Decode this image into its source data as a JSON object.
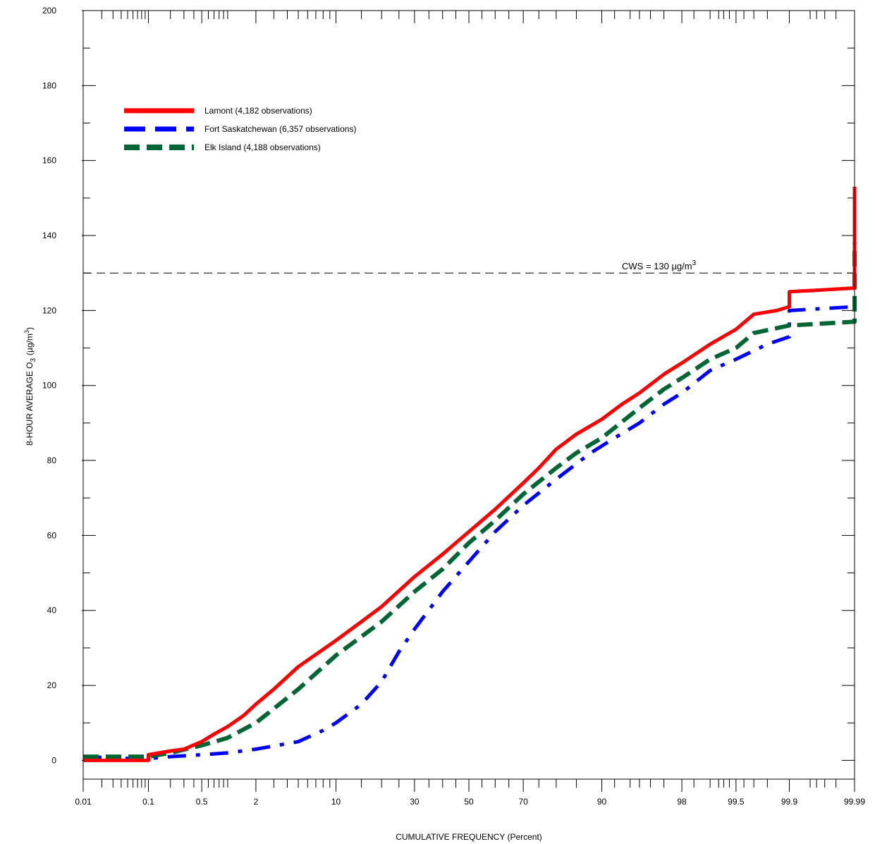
{
  "chart_data": {
    "type": "line",
    "title": "",
    "xlabel": "CUMULATIVE FREQUENCY (Percent)",
    "ylabel_main": "8-HOUR AVERAGE O",
    "ylabel_sub": "3",
    "ylabel_unit": "(µg/m",
    "ylabel_unit_sup": "3",
    "ylabel_close": ")",
    "x_scale": "probability",
    "xlim": [
      0.01,
      99.99
    ],
    "ylim": [
      -5,
      200
    ],
    "x_ticks": [
      {
        "value": 0.01,
        "label": "0.01"
      },
      {
        "value": 0.1,
        "label": "0.1"
      },
      {
        "value": 0.5,
        "label": "0.5"
      },
      {
        "value": 2,
        "label": "2"
      },
      {
        "value": 10,
        "label": "10"
      },
      {
        "value": 30,
        "label": "30"
      },
      {
        "value": 50,
        "label": "50"
      },
      {
        "value": 70,
        "label": "70"
      },
      {
        "value": 90,
        "label": "90"
      },
      {
        "value": 98,
        "label": "98"
      },
      {
        "value": 99.5,
        "label": "99.5"
      },
      {
        "value": 99.9,
        "label": "99.9"
      },
      {
        "value": 99.99,
        "label": "99.99"
      }
    ],
    "y_ticks": [
      {
        "value": 0,
        "label": "0"
      },
      {
        "value": 20,
        "label": "20"
      },
      {
        "value": 40,
        "label": "40"
      },
      {
        "value": 60,
        "label": "60"
      },
      {
        "value": 80,
        "label": "80"
      },
      {
        "value": 100,
        "label": "100"
      },
      {
        "value": 120,
        "label": "120"
      },
      {
        "value": 140,
        "label": "140"
      },
      {
        "value": 160,
        "label": "160"
      },
      {
        "value": 180,
        "label": "180"
      },
      {
        "value": 200,
        "label": "200"
      }
    ],
    "minor_x_ticks": [
      0.02,
      0.03,
      0.04,
      0.05,
      0.06,
      0.07,
      0.08,
      0.09,
      0.2,
      0.3,
      0.4,
      0.6,
      0.7,
      0.8,
      0.9,
      1,
      3,
      4,
      5,
      6,
      7,
      8,
      9,
      15,
      20,
      25,
      35,
      40,
      45,
      55,
      60,
      65,
      75,
      80,
      85,
      92,
      94,
      95,
      96,
      97,
      98.5,
      99,
      99.2,
      99.3,
      99.4,
      99.6,
      99.7,
      99.8,
      99.95,
      99.96,
      99.97,
      99.98
    ],
    "reference_line": {
      "y": 130,
      "label": "CWS = 130 µg/m",
      "label_sup": "3"
    },
    "legend_position": "top-left",
    "series": [
      {
        "name": "Lamont",
        "legend_label": "Lamont  (4,182 observations)",
        "color": "#ff0000",
        "style": "solid",
        "points": [
          [
            0.01,
            0
          ],
          [
            0.05,
            0
          ],
          [
            0.1,
            0
          ],
          [
            0.1,
            1.5
          ],
          [
            0.2,
            2.5
          ],
          [
            0.3,
            3
          ],
          [
            0.5,
            5
          ],
          [
            0.7,
            7
          ],
          [
            1,
            9
          ],
          [
            1.5,
            12
          ],
          [
            2,
            15
          ],
          [
            3,
            19
          ],
          [
            5,
            25
          ],
          [
            10,
            32
          ],
          [
            15,
            37
          ],
          [
            20,
            41
          ],
          [
            30,
            49
          ],
          [
            40,
            55
          ],
          [
            50,
            61
          ],
          [
            60,
            67
          ],
          [
            70,
            74
          ],
          [
            75,
            78
          ],
          [
            80,
            83
          ],
          [
            85,
            87
          ],
          [
            90,
            91
          ],
          [
            93,
            95
          ],
          [
            95,
            98
          ],
          [
            97,
            103
          ],
          [
            98,
            106
          ],
          [
            99,
            111
          ],
          [
            99.5,
            115
          ],
          [
            99.7,
            119
          ],
          [
            99.85,
            120
          ],
          [
            99.9,
            121
          ],
          [
            99.9,
            125
          ],
          [
            99.99,
            126
          ],
          [
            99.99,
            153
          ]
        ]
      },
      {
        "name": "Fort Saskatchewan",
        "legend_label": "Fort Saskatchewan  (6,357 observations)",
        "color": "#0000ff",
        "style": "dashdot",
        "points": [
          [
            0.01,
            1
          ],
          [
            0.05,
            0.5
          ],
          [
            0.1,
            0.5
          ],
          [
            0.2,
            1
          ],
          [
            0.5,
            1.5
          ],
          [
            1,
            2
          ],
          [
            2,
            3
          ],
          [
            5,
            5
          ],
          [
            8,
            8
          ],
          [
            10,
            10
          ],
          [
            15,
            15
          ],
          [
            20,
            21
          ],
          [
            25,
            29
          ],
          [
            30,
            35
          ],
          [
            40,
            45
          ],
          [
            50,
            53
          ],
          [
            60,
            61
          ],
          [
            70,
            68
          ],
          [
            80,
            75
          ],
          [
            88,
            82
          ],
          [
            92,
            86
          ],
          [
            95,
            90
          ],
          [
            97,
            95
          ],
          [
            98,
            98
          ],
          [
            99,
            104
          ],
          [
            99.5,
            107
          ],
          [
            99.8,
            111
          ],
          [
            99.9,
            113
          ],
          [
            99.9,
            120
          ],
          [
            99.99,
            121
          ],
          [
            99.99,
            143
          ]
        ]
      },
      {
        "name": "Elk Island",
        "legend_label": "Elk Island  (4,188 observations)",
        "color": "#006633",
        "style": "dashed",
        "points": [
          [
            0.01,
            1
          ],
          [
            0.05,
            1
          ],
          [
            0.1,
            1
          ],
          [
            0.2,
            2
          ],
          [
            0.5,
            4
          ],
          [
            1,
            6
          ],
          [
            2,
            10
          ],
          [
            5,
            19
          ],
          [
            10,
            28
          ],
          [
            20,
            37
          ],
          [
            30,
            45
          ],
          [
            40,
            51
          ],
          [
            50,
            58
          ],
          [
            60,
            64
          ],
          [
            70,
            71
          ],
          [
            80,
            78
          ],
          [
            85,
            82
          ],
          [
            90,
            86
          ],
          [
            95,
            94
          ],
          [
            97,
            99
          ],
          [
            98,
            102
          ],
          [
            99,
            107
          ],
          [
            99.5,
            110
          ],
          [
            99.7,
            114
          ],
          [
            99.9,
            116
          ],
          [
            99.99,
            117
          ],
          [
            99.99,
            138
          ]
        ]
      }
    ]
  }
}
